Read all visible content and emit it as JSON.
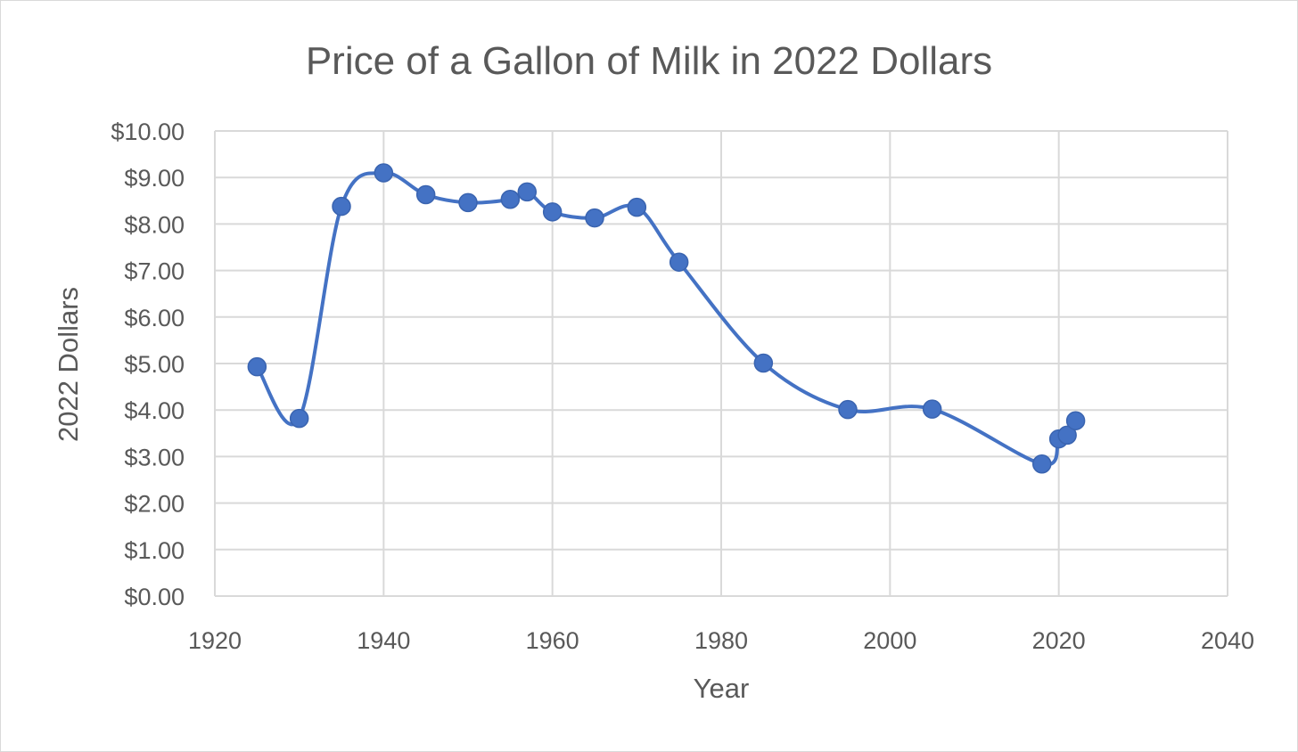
{
  "chart_data": {
    "type": "scatter",
    "title": "Price of a Gallon of Milk in 2022 Dollars",
    "xlabel": "Year",
    "ylabel": "2022 Dollars",
    "xlim": [
      1920,
      2040
    ],
    "ylim": [
      0,
      10
    ],
    "x_ticks": [
      "1920",
      "1940",
      "1960",
      "1980",
      "2000",
      "2020",
      "2040"
    ],
    "x_tick_values": [
      1920,
      1940,
      1960,
      1980,
      2000,
      2020,
      2040
    ],
    "y_ticks": [
      "$0.00",
      "$1.00",
      "$2.00",
      "$3.00",
      "$4.00",
      "$5.00",
      "$6.00",
      "$7.00",
      "$8.00",
      "$9.00",
      "$10.00"
    ],
    "y_tick_values": [
      0,
      1,
      2,
      3,
      4,
      5,
      6,
      7,
      8,
      9,
      10
    ],
    "grid": true,
    "legend": "none",
    "smoothed_line": true,
    "series": [
      {
        "color": "#4472c4",
        "x": [
          1925,
          1930,
          1935,
          1940,
          1945,
          1950,
          1955,
          1957,
          1960,
          1965,
          1970,
          1975,
          1985,
          1995,
          2005,
          2018,
          2020,
          2021,
          2022
        ],
        "y": [
          4.93,
          3.82,
          8.38,
          9.1,
          8.63,
          8.46,
          8.53,
          8.69,
          8.26,
          8.13,
          8.36,
          7.18,
          5.01,
          4.01,
          4.02,
          2.84,
          3.38,
          3.46,
          3.77
        ]
      }
    ]
  }
}
